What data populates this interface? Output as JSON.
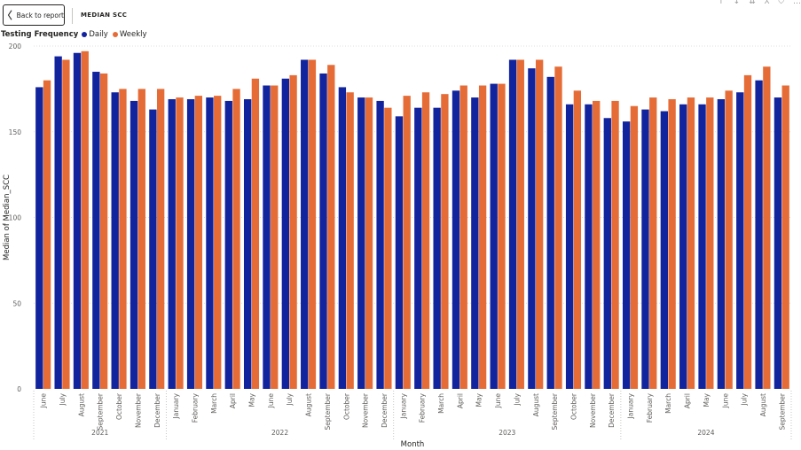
{
  "header": {
    "back_label": "Back to report",
    "title": "MEDIAN SCC"
  },
  "icons": [
    "arrow-up-icon",
    "arrow-down-icon",
    "expand-down-icon",
    "drill-icon",
    "filter-icon",
    "more-options-icon"
  ],
  "colors": {
    "daily": "#12239e",
    "weekly": "#e66c37",
    "grid": "#e1dfdd"
  },
  "chart_data": {
    "type": "bar",
    "legend": {
      "title": "Testing Frequency",
      "placement": "top-left"
    },
    "series": [
      {
        "name": "Daily",
        "color": "#12239e",
        "values": [
          176,
          194,
          196,
          185,
          173,
          168,
          163,
          169,
          169,
          170,
          168,
          169,
          177,
          181,
          192,
          184,
          176,
          170,
          168,
          159,
          164,
          164,
          174,
          170,
          178,
          192,
          187,
          182,
          166,
          166,
          158,
          156,
          163,
          162,
          166,
          166,
          169,
          173,
          180,
          170
        ]
      },
      {
        "name": "Weekly",
        "color": "#e66c37",
        "values": [
          180,
          192,
          197,
          184,
          175,
          175,
          175,
          170,
          171,
          171,
          175,
          181,
          177,
          183,
          192,
          189,
          173,
          170,
          164,
          171,
          173,
          172,
          177,
          177,
          178,
          192,
          192,
          188,
          174,
          168,
          168,
          165,
          170,
          169,
          170,
          170,
          174,
          183,
          188,
          177
        ]
      }
    ],
    "categories": [
      "June",
      "July",
      "August",
      "September",
      "October",
      "November",
      "December",
      "January",
      "February",
      "March",
      "April",
      "May",
      "June",
      "July",
      "August",
      "September",
      "October",
      "November",
      "December",
      "January",
      "February",
      "March",
      "April",
      "May",
      "June",
      "July",
      "August",
      "September",
      "October",
      "November",
      "December",
      "January",
      "February",
      "March",
      "April",
      "May",
      "June",
      "July",
      "August",
      "September"
    ],
    "years": [
      {
        "label": "2021",
        "count": 7
      },
      {
        "label": "2022",
        "count": 12
      },
      {
        "label": "2023",
        "count": 12
      },
      {
        "label": "2024",
        "count": 9
      }
    ],
    "xlabel": "Month",
    "ylabel": "Median of Median_SCC",
    "ylim": [
      0,
      200
    ],
    "yticks": [
      0,
      50,
      100,
      150,
      200
    ],
    "grid": true
  }
}
